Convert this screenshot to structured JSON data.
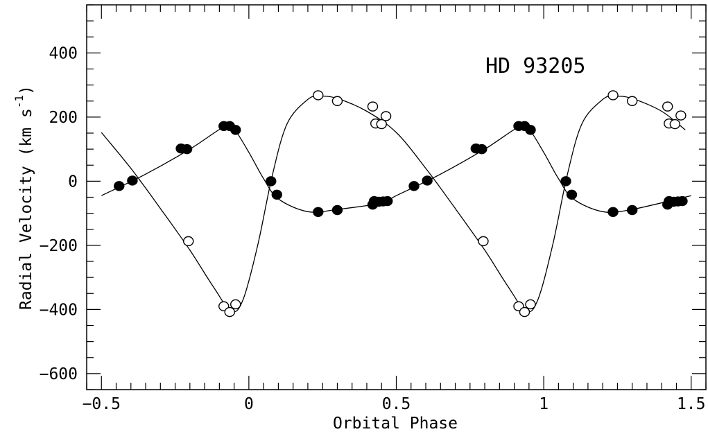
{
  "chart_data": {
    "type": "scatter",
    "annotation": "HD 93205",
    "xlabel": "Orbital Phase",
    "ylabel": "Radial Velocity (km s",
    "ylabel_superscript": "-1",
    "ylabel_suffix": ")",
    "xlim": [
      -0.55,
      1.55
    ],
    "ylim": [
      -650,
      550
    ],
    "xticks": [
      -0.5,
      0,
      0.5,
      1,
      1.5
    ],
    "xtick_labels": [
      "−0.5",
      "0",
      "0.5",
      "1",
      "1.5"
    ],
    "yticks": [
      -600,
      -400,
      -200,
      0,
      200,
      400
    ],
    "ytick_labels": [
      "−600",
      "−400",
      "−200",
      "0",
      "200",
      "400"
    ],
    "grid": false,
    "series": [
      {
        "marker": "filled-circle",
        "color": "#000000",
        "points": [
          [
            -0.44,
            -15
          ],
          [
            -0.395,
            2
          ],
          [
            -0.23,
            102
          ],
          [
            -0.21,
            100
          ],
          [
            -0.085,
            172
          ],
          [
            -0.065,
            172
          ],
          [
            -0.045,
            160
          ],
          [
            0.075,
            0
          ],
          [
            0.095,
            -42
          ],
          [
            0.235,
            -96
          ],
          [
            0.3,
            -90
          ],
          [
            0.42,
            -73
          ],
          [
            0.425,
            -62
          ],
          [
            0.44,
            -64
          ],
          [
            0.455,
            -63
          ],
          [
            0.47,
            -62
          ],
          [
            0.56,
            -15
          ],
          [
            0.605,
            2
          ],
          [
            0.77,
            102
          ],
          [
            0.79,
            100
          ],
          [
            0.915,
            172
          ],
          [
            0.935,
            172
          ],
          [
            0.955,
            160
          ],
          [
            1.075,
            0
          ],
          [
            1.095,
            -42
          ],
          [
            1.235,
            -96
          ],
          [
            1.3,
            -90
          ],
          [
            1.42,
            -73
          ],
          [
            1.425,
            -62
          ],
          [
            1.44,
            -64
          ],
          [
            1.455,
            -63
          ],
          [
            1.47,
            -62
          ]
        ],
        "fit": [
          [
            -0.5,
            -45
          ],
          [
            -0.35,
            22
          ],
          [
            -0.2,
            100
          ],
          [
            -0.08,
            172
          ],
          [
            -0.05,
            163
          ],
          [
            0,
            90
          ],
          [
            0.05,
            8
          ],
          [
            0.1,
            -55
          ],
          [
            0.2,
            -95
          ],
          [
            0.3,
            -88
          ],
          [
            0.45,
            -68
          ],
          [
            0.5,
            -45
          ],
          [
            0.65,
            22
          ],
          [
            0.8,
            100
          ],
          [
            0.92,
            172
          ],
          [
            0.95,
            163
          ],
          [
            1,
            90
          ],
          [
            1.05,
            8
          ],
          [
            1.1,
            -55
          ],
          [
            1.2,
            -95
          ],
          [
            1.3,
            -88
          ],
          [
            1.5,
            -45
          ]
        ]
      },
      {
        "marker": "open-circle",
        "color": "#000000",
        "points": [
          [
            -0.205,
            -187
          ],
          [
            -0.085,
            -390
          ],
          [
            -0.065,
            -408
          ],
          [
            -0.045,
            -384
          ],
          [
            0.235,
            268
          ],
          [
            0.3,
            250
          ],
          [
            0.42,
            233
          ],
          [
            0.43,
            180
          ],
          [
            0.45,
            178
          ],
          [
            0.465,
            203
          ],
          [
            0.795,
            -187
          ],
          [
            0.915,
            -390
          ],
          [
            0.935,
            -408
          ],
          [
            0.955,
            -384
          ],
          [
            1.235,
            268
          ],
          [
            1.3,
            250
          ],
          [
            1.42,
            233
          ],
          [
            1.425,
            180
          ],
          [
            1.445,
            178
          ],
          [
            1.465,
            205
          ]
        ],
        "fit": [
          [
            -0.5,
            152
          ],
          [
            -0.4,
            40
          ],
          [
            -0.3,
            -85
          ],
          [
            -0.2,
            -215
          ],
          [
            -0.12,
            -330
          ],
          [
            -0.06,
            -405
          ],
          [
            -0.02,
            -370
          ],
          [
            0.03,
            -200
          ],
          [
            0.08,
            20
          ],
          [
            0.13,
            180
          ],
          [
            0.2,
            255
          ],
          [
            0.24,
            265
          ],
          [
            0.3,
            258
          ],
          [
            0.4,
            218
          ],
          [
            0.5,
            152
          ],
          [
            0.6,
            40
          ],
          [
            0.7,
            -85
          ],
          [
            0.8,
            -215
          ],
          [
            0.88,
            -330
          ],
          [
            0.94,
            -405
          ],
          [
            0.98,
            -370
          ],
          [
            1.03,
            -200
          ],
          [
            1.08,
            20
          ],
          [
            1.13,
            180
          ],
          [
            1.2,
            255
          ],
          [
            1.24,
            265
          ],
          [
            1.3,
            258
          ],
          [
            1.4,
            218
          ],
          [
            1.48,
            160
          ]
        ]
      }
    ]
  }
}
